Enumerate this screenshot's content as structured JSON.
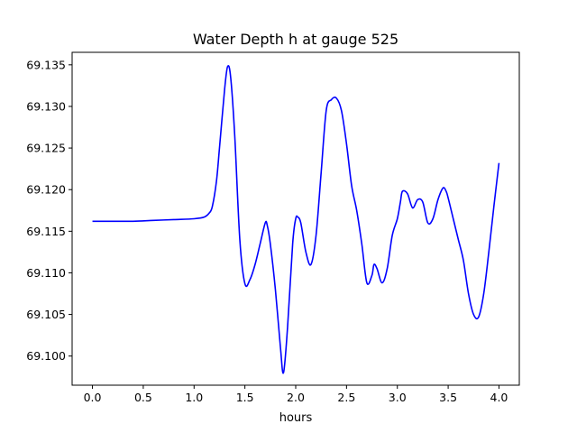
{
  "chart_data": {
    "type": "line",
    "title": "Water Depth h at gauge 525",
    "xlabel": "hours",
    "ylabel": "",
    "xlim": [
      -0.2,
      4.2
    ],
    "ylim": [
      69.0965,
      69.1365
    ],
    "x_ticks": [
      0.0,
      0.5,
      1.0,
      1.5,
      2.0,
      2.5,
      3.0,
      3.5,
      4.0
    ],
    "x_tick_labels": [
      "0.0",
      "0.5",
      "1.0",
      "1.5",
      "2.0",
      "2.5",
      "3.0",
      "3.5",
      "4.0"
    ],
    "y_ticks": [
      69.1,
      69.105,
      69.11,
      69.115,
      69.12,
      69.125,
      69.13,
      69.135
    ],
    "y_tick_labels": [
      "69.100",
      "69.105",
      "69.110",
      "69.115",
      "69.120",
      "69.125",
      "69.130",
      "69.135"
    ],
    "grid": false,
    "series": [
      {
        "color": "#0000ff",
        "x": [
          0.0,
          0.2,
          0.4,
          0.6,
          0.8,
          1.0,
          1.1,
          1.15,
          1.18,
          1.22,
          1.25,
          1.3,
          1.33,
          1.36,
          1.4,
          1.45,
          1.5,
          1.55,
          1.6,
          1.65,
          1.7,
          1.72,
          1.75,
          1.8,
          1.85,
          1.88,
          1.92,
          1.97,
          2.0,
          2.02,
          2.05,
          2.1,
          2.15,
          2.2,
          2.25,
          2.3,
          2.35,
          2.4,
          2.45,
          2.5,
          2.55,
          2.6,
          2.65,
          2.7,
          2.75,
          2.77,
          2.8,
          2.85,
          2.9,
          2.95,
          3.0,
          3.03,
          3.05,
          3.1,
          3.15,
          3.2,
          3.25,
          3.3,
          3.35,
          3.4,
          3.45,
          3.48,
          3.5,
          3.55,
          3.6,
          3.65,
          3.7,
          3.75,
          3.8,
          3.85,
          3.9,
          3.95,
          4.0
        ],
        "y": [
          69.1162,
          69.1162,
          69.1162,
          69.1163,
          69.1164,
          69.1165,
          69.1167,
          69.1172,
          69.118,
          69.121,
          69.125,
          69.132,
          69.1348,
          69.1335,
          69.1265,
          69.114,
          69.1087,
          69.1092,
          69.111,
          69.1135,
          69.116,
          69.1157,
          69.1135,
          69.108,
          69.101,
          69.098,
          69.1035,
          69.1135,
          69.1165,
          69.1167,
          69.116,
          69.1125,
          69.111,
          69.1145,
          69.122,
          69.1295,
          69.1308,
          69.131,
          69.1295,
          69.1255,
          69.1205,
          69.1175,
          69.1135,
          69.1088,
          69.1097,
          69.111,
          69.1105,
          69.1088,
          69.1105,
          69.1145,
          69.1165,
          69.1185,
          69.1198,
          69.1195,
          69.1178,
          69.1188,
          69.1185,
          69.116,
          69.1165,
          69.1188,
          69.1202,
          69.1198,
          69.119,
          69.1165,
          69.114,
          69.1115,
          69.1075,
          69.105,
          69.1047,
          69.1075,
          69.1125,
          69.118,
          69.1232
        ]
      }
    ]
  }
}
